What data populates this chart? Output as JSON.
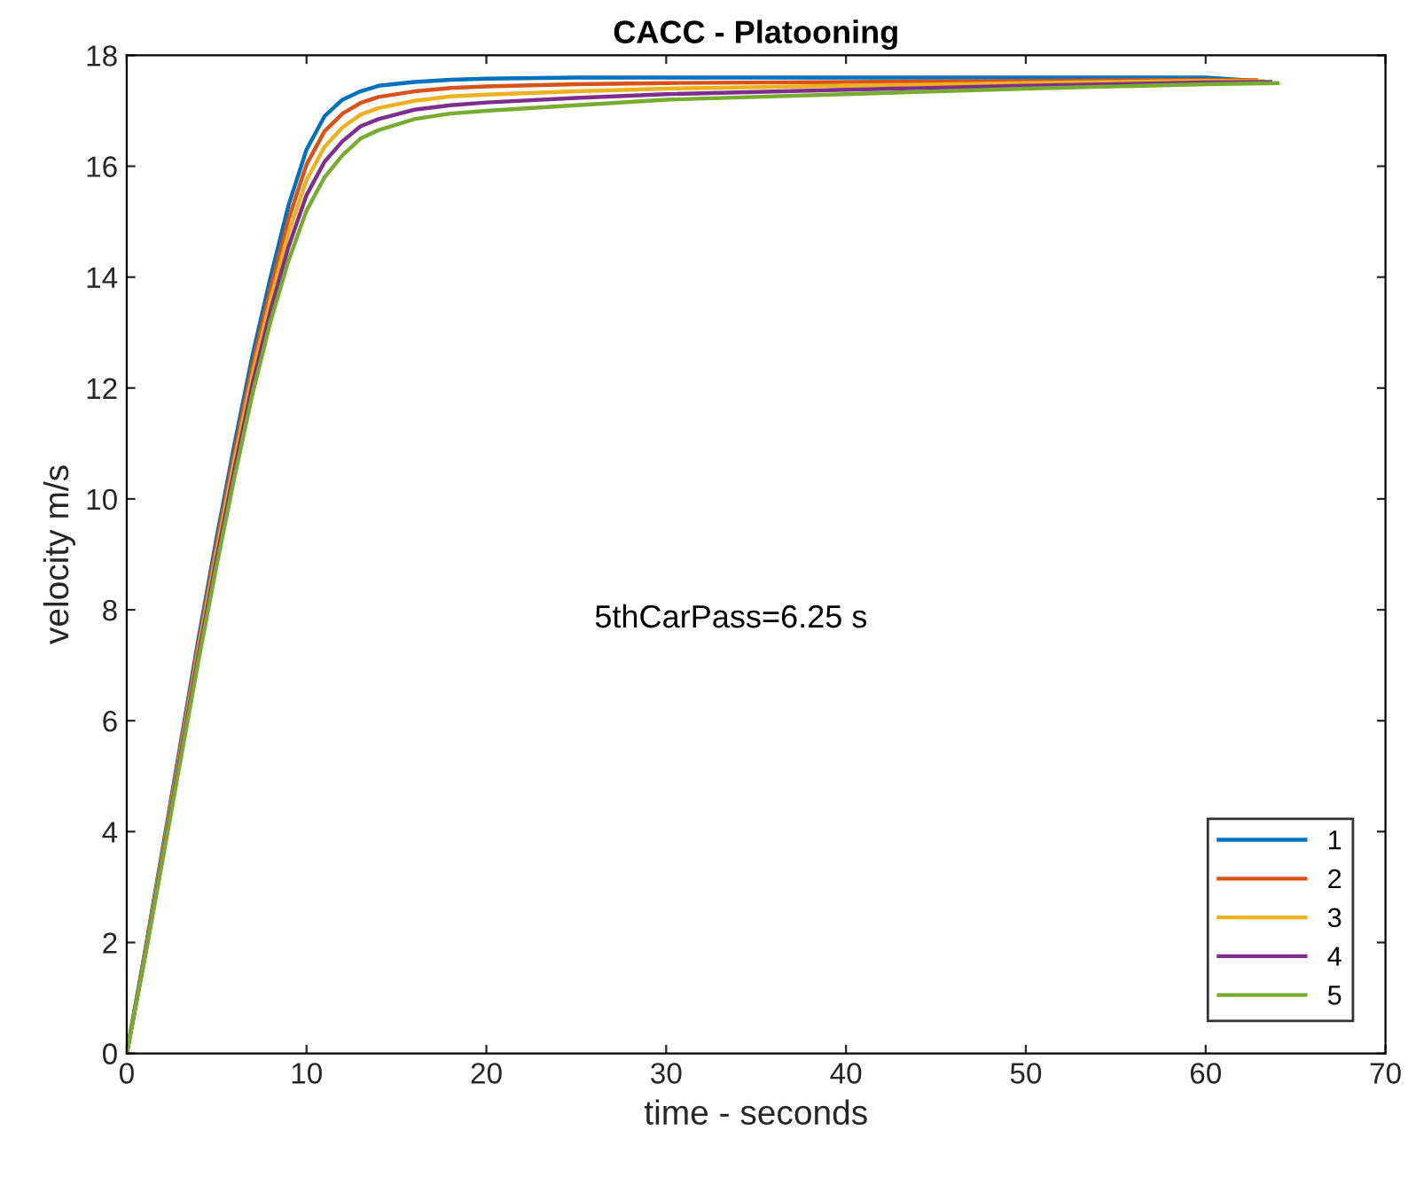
{
  "chart_data": {
    "type": "line",
    "title": "CACC - Platooning",
    "xlabel": "time - seconds",
    "ylabel": "velocity m/s",
    "annotations": [
      "5thCarPass=6.25 s"
    ],
    "xlim": [
      0,
      70
    ],
    "xticks": [
      0,
      10,
      20,
      30,
      40,
      50,
      60,
      70
    ],
    "ylim": [
      0,
      18
    ],
    "yticks": [
      0,
      2,
      4,
      6,
      8,
      10,
      12,
      14,
      16,
      18
    ],
    "grid": false,
    "legend": "bottom right",
    "marker": "none",
    "line_style": "solid",
    "series": [
      {
        "name": "1",
        "color": "#0072bd",
        "x": [
          0,
          1,
          2,
          3,
          4,
          5,
          6,
          7,
          8,
          9,
          10,
          11,
          12,
          13,
          14,
          16,
          18,
          20,
          25,
          30,
          40,
          50,
          60,
          62.3
        ],
        "values": [
          0,
          1.8,
          3.7,
          5.6,
          7.5,
          9.3,
          11.0,
          12.6,
          14.0,
          15.3,
          16.3,
          16.9,
          17.2,
          17.35,
          17.45,
          17.52,
          17.56,
          17.58,
          17.6,
          17.6,
          17.6,
          17.6,
          17.6,
          17.55
        ]
      },
      {
        "name": "2",
        "color": "#d95319",
        "x": [
          0,
          1,
          2,
          3,
          4,
          5,
          6,
          7,
          8,
          9,
          10,
          11,
          12,
          13,
          14,
          16,
          18,
          20,
          25,
          30,
          40,
          50,
          60,
          62.8
        ],
        "values": [
          0,
          1.78,
          3.65,
          5.53,
          7.4,
          9.18,
          10.85,
          12.43,
          13.8,
          15.05,
          16.03,
          16.63,
          16.95,
          17.14,
          17.25,
          17.35,
          17.41,
          17.44,
          17.48,
          17.5,
          17.52,
          17.54,
          17.56,
          17.55
        ]
      },
      {
        "name": "3",
        "color": "#edb120",
        "x": [
          0,
          1,
          2,
          3,
          4,
          5,
          6,
          7,
          8,
          9,
          10,
          11,
          12,
          13,
          14,
          16,
          18,
          20,
          25,
          30,
          40,
          50,
          60,
          63.2
        ],
        "values": [
          0,
          1.75,
          3.6,
          5.45,
          7.3,
          9.05,
          10.7,
          12.25,
          13.6,
          14.8,
          15.75,
          16.35,
          16.7,
          16.93,
          17.05,
          17.18,
          17.26,
          17.29,
          17.35,
          17.4,
          17.45,
          17.5,
          17.54,
          17.53
        ]
      },
      {
        "name": "4",
        "color": "#7e2f8e",
        "x": [
          0,
          1,
          2,
          3,
          4,
          5,
          6,
          7,
          8,
          9,
          10,
          11,
          12,
          13,
          14,
          16,
          18,
          20,
          25,
          30,
          40,
          50,
          60,
          63.6
        ],
        "values": [
          0,
          1.73,
          3.55,
          5.38,
          7.2,
          8.93,
          10.55,
          12.08,
          13.4,
          14.55,
          15.48,
          16.08,
          16.45,
          16.72,
          16.85,
          17.02,
          17.1,
          17.15,
          17.23,
          17.3,
          17.38,
          17.45,
          17.51,
          17.52
        ]
      },
      {
        "name": "5",
        "color": "#77ac30",
        "x": [
          0,
          1,
          2,
          3,
          4,
          5,
          6,
          7,
          8,
          9,
          10,
          11,
          12,
          13,
          14,
          16,
          18,
          20,
          25,
          30,
          40,
          50,
          60,
          64
        ],
        "values": [
          0,
          1.7,
          3.5,
          5.3,
          7.1,
          8.8,
          10.4,
          11.9,
          13.2,
          14.3,
          15.2,
          15.8,
          16.2,
          16.5,
          16.65,
          16.85,
          16.95,
          17.0,
          17.1,
          17.2,
          17.3,
          17.4,
          17.48,
          17.5
        ]
      }
    ]
  }
}
